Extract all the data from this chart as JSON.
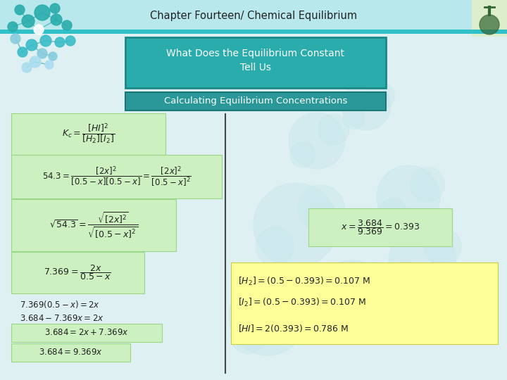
{
  "title": "Chapter Fourteen/ Chemical Equilibrium",
  "subtitle1": "What Does the Equilibrium Constant",
  "subtitle2": "Tell Us",
  "subtitle3": "Calculating Equilibrium Concentrations",
  "header_bg": "#b8e8ec",
  "header_stripe": "#30c0c8",
  "header_text_color": "#222222",
  "box1_bg": "#2aacac",
  "box1_edge": "#1a8888",
  "box2_bg": "#2a9898",
  "box2_edge": "#1a7878",
  "slide_bg": "#dff0f2",
  "green_box_bg": "#ccf0c0",
  "green_box_edge": "#99d888",
  "yellow_box_bg": "#ffff99",
  "yellow_box_edge": "#cccc44",
  "divider_color": "#666666",
  "text_color": "#222222"
}
